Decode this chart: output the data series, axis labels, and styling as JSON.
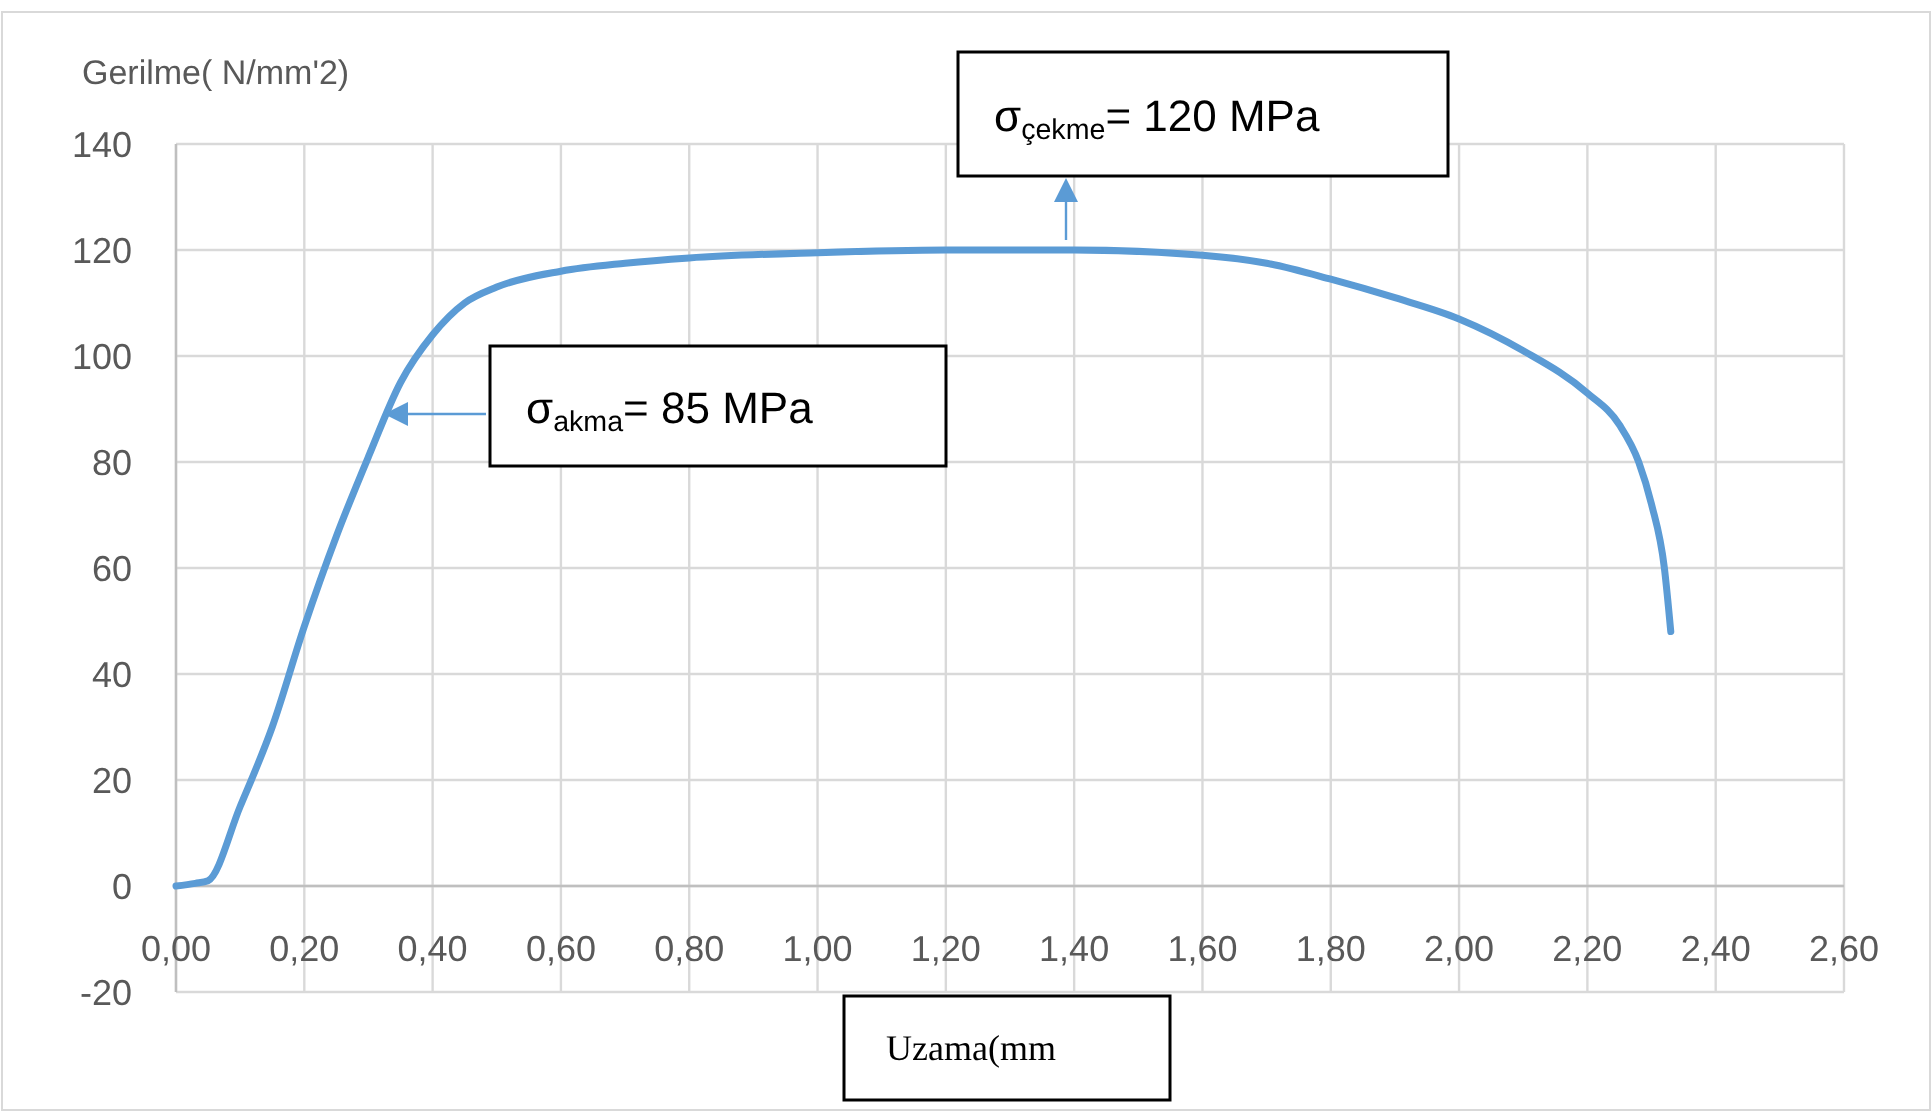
{
  "chart_data": {
    "type": "line",
    "xlabel": "Uzama(mm",
    "ylabel": "Gerilme( N/mm'2)",
    "x": [
      0,
      0.03,
      0.05,
      0.1,
      0.15,
      0.2,
      0.25,
      0.3,
      0.35,
      0.4,
      0.45,
      0.5,
      0.6,
      0.7,
      0.8,
      1.0,
      1.2,
      1.4,
      1.6,
      1.7,
      1.8,
      1.9,
      2.0,
      2.1,
      2.2,
      2.25,
      2.28,
      2.3,
      2.32,
      2.33
    ],
    "series": [
      {
        "color": "#5b9bd5",
        "values": [
          0,
          0.5,
          1,
          15,
          30,
          49,
          66,
          81,
          95,
          104,
          110,
          113,
          116,
          117.5,
          118.5,
          119.5,
          120,
          120,
          119,
          117.5,
          114.5,
          111,
          107,
          101,
          93,
          87,
          80,
          72,
          60,
          48
        ]
      }
    ],
    "xlim": [
      0,
      2.6
    ],
    "ylim": [
      -20,
      140
    ],
    "xticks": [
      {
        "value": 0,
        "label": "0,00"
      },
      {
        "value": 0.2,
        "label": "0,20"
      },
      {
        "value": 0.4,
        "label": "0,40"
      },
      {
        "value": 0.6,
        "label": "0,60"
      },
      {
        "value": 0.8,
        "label": "0,80"
      },
      {
        "value": 1,
        "label": "1,00"
      },
      {
        "value": 1.2,
        "label": "1,20"
      },
      {
        "value": 1.4,
        "label": "1,40"
      },
      {
        "value": 1.6,
        "label": "1,60"
      },
      {
        "value": 1.8,
        "label": "1,80"
      },
      {
        "value": 2,
        "label": "2,00"
      },
      {
        "value": 2.2,
        "label": "2,20"
      },
      {
        "value": 2.4,
        "label": "2,40"
      },
      {
        "value": 2.6,
        "label": "2,60"
      }
    ],
    "yticks": [
      -20,
      0,
      20,
      40,
      60,
      80,
      100,
      120,
      140
    ],
    "grid": true,
    "marker": "none",
    "line_style": "solid",
    "annotations": [
      "σ$_{akma}$= 85 MPa",
      "σ$_{çekme}$= 120 MPa"
    ]
  }
}
